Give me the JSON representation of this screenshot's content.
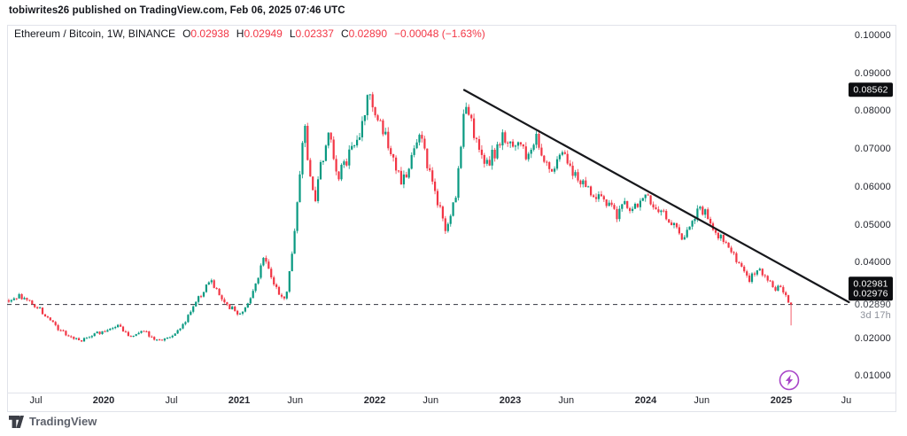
{
  "attribution": "tobiwrites26 published on TradingView.com, Feb 06, 2025 07:46 UTC",
  "header": {
    "symbol": "Ethereum / Bitcoin, 1W, BINANCE",
    "ohlc": [
      {
        "label": "O",
        "value": "0.02938"
      },
      {
        "label": "H",
        "value": "0.02949"
      },
      {
        "label": "L",
        "value": "0.02337"
      },
      {
        "label": "C",
        "value": "0.02890"
      }
    ],
    "change": "−0.00048 (−1.63%)"
  },
  "watermark": "TradingView",
  "chart_data": {
    "type": "candlestick",
    "title": "Ethereum / Bitcoin weekly chart with descending trendline and horizontal support",
    "symbol": "ETH/BTC",
    "timeframe": "1W",
    "exchange": "BINANCE",
    "last_candle": {
      "open": 0.02938,
      "high": 0.02949,
      "low": 0.02337,
      "close": 0.0289
    },
    "change_abs": -0.00048,
    "change_pct": -1.63,
    "y_axis": {
      "side": "right",
      "ticks": [
        {
          "price": 0.1,
          "label": "0.10000"
        },
        {
          "price": 0.09,
          "label": "0.09000"
        },
        {
          "price": 0.08,
          "label": "0.08000"
        },
        {
          "price": 0.07,
          "label": "0.07000"
        },
        {
          "price": 0.06,
          "label": "0.06000"
        },
        {
          "price": 0.05,
          "label": "0.05000"
        },
        {
          "price": 0.04,
          "label": "0.04000"
        },
        {
          "price": 0.02,
          "label": "0.02000"
        },
        {
          "price": 0.01,
          "label": "0.01000"
        }
      ],
      "badges": [
        {
          "label": "0.08562",
          "price": 0.08562
        },
        {
          "label": "0.02981",
          "price": 0.02981
        },
        {
          "label": "0.02976",
          "price": 0.02976
        }
      ],
      "last_price_label": "0.02890",
      "countdown_label": "3d 17h"
    },
    "x_axis": {
      "ticks": [
        {
          "label": "Jul",
          "year": 2019.5,
          "bold": false
        },
        {
          "label": "2020",
          "year": 2020.0,
          "bold": true
        },
        {
          "label": "Jul",
          "year": 2020.5,
          "bold": false
        },
        {
          "label": "2021",
          "year": 2021.0,
          "bold": true
        },
        {
          "label": "Jun",
          "year": 2021.414,
          "bold": false
        },
        {
          "label": "2022",
          "year": 2022.0,
          "bold": true
        },
        {
          "label": "Jun",
          "year": 2022.414,
          "bold": false
        },
        {
          "label": "2023",
          "year": 2023.0,
          "bold": true
        },
        {
          "label": "Jun",
          "year": 2023.414,
          "bold": false
        },
        {
          "label": "2024",
          "year": 2024.0,
          "bold": true
        },
        {
          "label": "Jun",
          "year": 2024.414,
          "bold": false
        },
        {
          "label": "2025",
          "year": 2025.0,
          "bold": true
        },
        {
          "label": "Ju",
          "year": 2025.48,
          "bold": false
        }
      ]
    },
    "series": {
      "start_year": 2019.3,
      "week_step_years": 0.019177,
      "num_weeks": 302,
      "price_path_keypoints": [
        [
          2019.3,
          0.03
        ],
        [
          2019.38,
          0.0309
        ],
        [
          2019.46,
          0.0295
        ],
        [
          2019.56,
          0.0262
        ],
        [
          2019.66,
          0.0228
        ],
        [
          2019.75,
          0.0205
        ],
        [
          2019.82,
          0.0195
        ],
        [
          2019.9,
          0.0204
        ],
        [
          2020.0,
          0.022
        ],
        [
          2020.1,
          0.0235
        ],
        [
          2020.2,
          0.0206
        ],
        [
          2020.28,
          0.0217
        ],
        [
          2020.36,
          0.0204
        ],
        [
          2020.44,
          0.0189
        ],
        [
          2020.52,
          0.0211
        ],
        [
          2020.6,
          0.024
        ],
        [
          2020.66,
          0.0282
        ],
        [
          2020.72,
          0.0318
        ],
        [
          2020.78,
          0.035
        ],
        [
          2020.84,
          0.0324
        ],
        [
          2020.92,
          0.0287
        ],
        [
          2021.0,
          0.0263
        ],
        [
          2021.06,
          0.0292
        ],
        [
          2021.13,
          0.0348
        ],
        [
          2021.18,
          0.0418
        ],
        [
          2021.24,
          0.036
        ],
        [
          2021.3,
          0.0305
        ],
        [
          2021.34,
          0.0299
        ],
        [
          2021.4,
          0.0455
        ],
        [
          2021.45,
          0.0655
        ],
        [
          2021.48,
          0.0772
        ],
        [
          2021.52,
          0.0638
        ],
        [
          2021.56,
          0.0566
        ],
        [
          2021.62,
          0.0688
        ],
        [
          2021.67,
          0.0734
        ],
        [
          2021.72,
          0.0626
        ],
        [
          2021.78,
          0.0668
        ],
        [
          2021.84,
          0.0716
        ],
        [
          2021.9,
          0.076
        ],
        [
          2021.95,
          0.0838
        ],
        [
          2022.0,
          0.0812
        ],
        [
          2022.06,
          0.0755
        ],
        [
          2022.12,
          0.0695
        ],
        [
          2022.18,
          0.0618
        ],
        [
          2022.24,
          0.064
        ],
        [
          2022.3,
          0.0722
        ],
        [
          2022.34,
          0.0755
        ],
        [
          2022.4,
          0.0645
        ],
        [
          2022.46,
          0.0562
        ],
        [
          2022.52,
          0.049
        ],
        [
          2022.56,
          0.0524
        ],
        [
          2022.6,
          0.0585
        ],
        [
          2022.63,
          0.0675
        ],
        [
          2022.66,
          0.0836
        ],
        [
          2022.7,
          0.0778
        ],
        [
          2022.76,
          0.0708
        ],
        [
          2022.82,
          0.0662
        ],
        [
          2022.88,
          0.0688
        ],
        [
          2022.94,
          0.0726
        ],
        [
          2023.0,
          0.0712
        ],
        [
          2023.06,
          0.0724
        ],
        [
          2023.12,
          0.0684
        ],
        [
          2023.19,
          0.073
        ],
        [
          2023.28,
          0.0636
        ],
        [
          2023.38,
          0.069
        ],
        [
          2023.46,
          0.0634
        ],
        [
          2023.54,
          0.0608
        ],
        [
          2023.62,
          0.0584
        ],
        [
          2023.7,
          0.0576
        ],
        [
          2023.78,
          0.0526
        ],
        [
          2023.84,
          0.0552
        ],
        [
          2023.9,
          0.0538
        ],
        [
          2023.96,
          0.0564
        ],
        [
          2024.0,
          0.0588
        ],
        [
          2024.05,
          0.0548
        ],
        [
          2024.12,
          0.0534
        ],
        [
          2024.2,
          0.0498
        ],
        [
          2024.28,
          0.0466
        ],
        [
          2024.34,
          0.0504
        ],
        [
          2024.38,
          0.0546
        ],
        [
          2024.44,
          0.0538
        ],
        [
          2024.5,
          0.0494
        ],
        [
          2024.56,
          0.0458
        ],
        [
          2024.62,
          0.0436
        ],
        [
          2024.68,
          0.0404
        ],
        [
          2024.73,
          0.0378
        ],
        [
          2024.76,
          0.0344
        ],
        [
          2024.8,
          0.0368
        ],
        [
          2024.83,
          0.0386
        ],
        [
          2024.88,
          0.0362
        ],
        [
          2024.93,
          0.0344
        ],
        [
          2024.98,
          0.033
        ],
        [
          2025.03,
          0.0312
        ],
        [
          2025.085,
          0.0294
        ]
      ]
    },
    "drawings": {
      "trendline": {
        "from_year": 2022.66,
        "from_price": 0.0856,
        "to_year": 2025.5,
        "to_price": 0.0295
      },
      "horizontal_dashed_line_price": 0.0289
    },
    "colors": {
      "up": "#089981",
      "down": "#f23645",
      "trendline": "#17181c",
      "dashed_line": "#4a4d55",
      "badge_bg": "#0c0d10",
      "accent_purple": "#a845c8",
      "ohlc_value": "#f23645",
      "frame": "#e1e3ea"
    },
    "legend_position": "none",
    "grid": false
  },
  "footer_marker": "lightning"
}
